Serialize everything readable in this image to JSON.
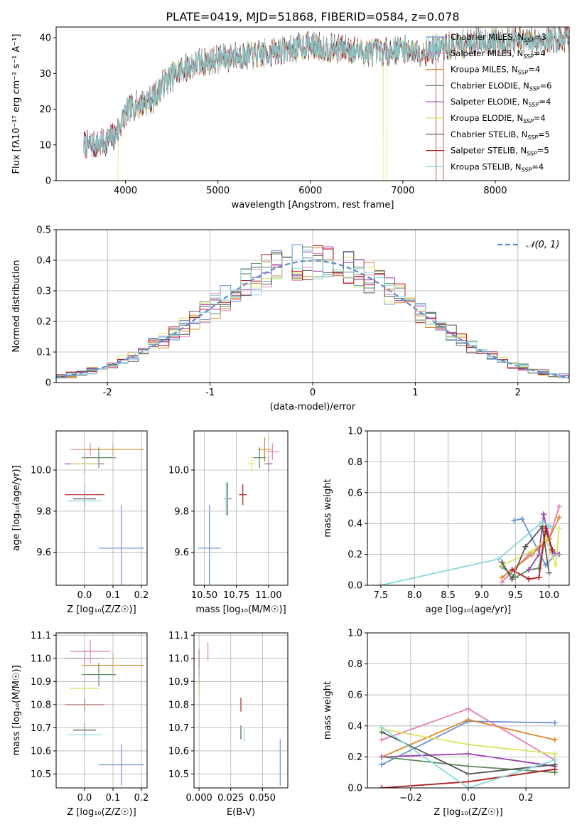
{
  "figure_title": "PLATE=0419, MJD=51868, FIBERID=0584, z=0.078",
  "colors": {
    "Chabrier MILES": "#6a8fd8",
    "Salpeter MILES": "#e67fb8",
    "Kroupa MILES": "#e08628",
    "Chabrier ELODIE": "#5e8b5e",
    "Salpeter ELODIE": "#9a3db0",
    "Kroupa ELODIE": "#dbe55c",
    "Chabrier STELIB": "#555555",
    "Salpeter STELIB": "#b01c1c",
    "Kroupa STELIB": "#88d8dc"
  },
  "chart_data": [
    {
      "id": "spectrum",
      "type": "line",
      "title": "PLATE=0419, MJD=51868, FIBERID=0584, z=0.078",
      "xlabel": "wavelength [Angstrom, rest frame]",
      "ylabel": "Flux [fλ10⁻¹⁷ erg cm⁻² s⁻¹ A⁻¹]",
      "xlim": [
        3250,
        8800
      ],
      "ylim": [
        0,
        43
      ],
      "xticks": [
        4000,
        5000,
        6000,
        7000,
        8000
      ],
      "yticks": [
        0,
        10,
        20,
        30,
        40
      ],
      "grid": false,
      "legend_position": "top-right",
      "continuum_x": [
        3550,
        3700,
        3800,
        3900,
        4000,
        4100,
        4200,
        4300,
        4400,
        4500,
        4600,
        4800,
        5000,
        5200,
        5400,
        5600,
        5800,
        6000,
        6200,
        6400,
        6600,
        6800,
        7000,
        7200,
        7400,
        7600,
        7800,
        8000,
        8200,
        8400,
        8800
      ],
      "continuum_y": [
        10,
        10,
        11,
        13,
        19,
        21,
        22,
        23,
        27,
        29,
        31,
        33,
        34,
        35,
        35,
        36,
        37,
        38,
        37,
        37,
        36,
        36,
        37,
        36,
        37,
        38,
        39,
        39,
        39,
        39,
        40
      ],
      "legend": [
        {
          "name": "Chabrier MILES",
          "nssp": "3"
        },
        {
          "name": "Salpeter MILES",
          "nssp": "4"
        },
        {
          "name": "Kroupa MILES",
          "nssp": "4"
        },
        {
          "name": "Chabrier ELODIE",
          "nssp": "6"
        },
        {
          "name": "Salpeter ELODIE",
          "nssp": "4"
        },
        {
          "name": "Kroupa ELODIE",
          "nssp": "4"
        },
        {
          "name": "Chabrier STELIB",
          "nssp": "5"
        },
        {
          "name": "Salpeter STELIB",
          "nssp": "5"
        },
        {
          "name": "Kroupa STELIB",
          "nssp": "4"
        }
      ]
    },
    {
      "id": "residuals",
      "type": "line",
      "xlabel": "(data-model)/error",
      "ylabel": "Normed distribution",
      "xlim": [
        -2.5,
        2.5
      ],
      "ylim": [
        0,
        0.5
      ],
      "xticks": [
        -2,
        -1,
        0,
        1,
        2
      ],
      "yticks": [
        0.0,
        0.1,
        0.2,
        0.3,
        0.4,
        0.5
      ],
      "grid": true,
      "legend_position": "top-right",
      "legend": [
        {
          "name": "𝒩(0, 1)"
        }
      ],
      "bin_width": 0.1,
      "gaussian": {
        "mean": 0,
        "sigma": 1
      }
    },
    {
      "id": "age-vs-Z",
      "type": "scatter",
      "xlabel": "Z [log₁₀(Z/Z☉)]",
      "ylabel": "age  [log₁₀(age/yr)]",
      "xlim": [
        -0.1,
        0.22
      ],
      "ylim": [
        9.44,
        10.19
      ],
      "xticks": [
        0.0,
        0.1,
        0.2
      ],
      "xticklabels": [
        "0.0",
        "0.1",
        "0.2"
      ],
      "yticks": [
        9.6,
        9.8,
        10.0
      ],
      "yticklabels": [
        "9.6",
        "9.8",
        "10.0"
      ],
      "grid": true,
      "points": [
        {
          "series": "Chabrier MILES",
          "x": 0.13,
          "y": 9.62,
          "xerr": 0.08,
          "yerr": 0.21
        },
        {
          "series": "Salpeter MILES",
          "x": 0.02,
          "y": 10.1,
          "xerr": 0.07,
          "yerr": 0.03
        },
        {
          "series": "Kroupa MILES",
          "x": 0.1,
          "y": 10.1,
          "xerr": 0.11,
          "yerr": 0.03
        },
        {
          "series": "Chabrier ELODIE",
          "x": 0.05,
          "y": 10.06,
          "xerr": 0.06,
          "yerr": 0.05
        },
        {
          "series": "Salpeter ELODIE",
          "x": 0.0,
          "y": 10.03,
          "xerr": 0.07,
          "yerr": 0.05
        },
        {
          "series": "Kroupa ELODIE",
          "x": 0.0,
          "y": 10.03,
          "xerr": 0.05,
          "yerr": 0.04
        },
        {
          "series": "Chabrier STELIB",
          "x": 0.0,
          "y": 9.86,
          "xerr": 0.04,
          "yerr": 0.04
        },
        {
          "series": "Salpeter STELIB",
          "x": 0.0,
          "y": 9.88,
          "xerr": 0.07,
          "yerr": 0.05
        },
        {
          "series": "Kroupa STELIB",
          "x": 0.0,
          "y": 9.85,
          "xerr": 0.06,
          "yerr": 0.07
        }
      ]
    },
    {
      "id": "age-vs-mass",
      "type": "scatter",
      "xlabel": "mass [log₁₀(M/M☉)]",
      "ylabel": "",
      "xlim": [
        10.42,
        11.15
      ],
      "ylim": [
        9.44,
        10.19
      ],
      "xticks": [
        10.5,
        10.75,
        11.0
      ],
      "xticklabels": [
        "10.50",
        "10.75",
        "11.00"
      ],
      "yticks": [
        9.6,
        9.8,
        10.0
      ],
      "yticklabels": [
        "9.6",
        "9.8",
        "10.0"
      ],
      "grid": true,
      "points": [
        {
          "series": "Chabrier MILES",
          "x": 10.54,
          "y": 9.62,
          "xerr": 0.09,
          "yerr": 0.21
        },
        {
          "series": "Salpeter MILES",
          "x": 11.03,
          "y": 10.09,
          "xerr": 0.05,
          "yerr": 0.04
        },
        {
          "series": "Kroupa MILES",
          "x": 10.97,
          "y": 10.1,
          "xerr": 0.05,
          "yerr": 0.06
        },
        {
          "series": "Chabrier ELODIE",
          "x": 10.93,
          "y": 10.06,
          "xerr": 0.05,
          "yerr": 0.05
        },
        {
          "series": "Salpeter ELODIE",
          "x": 11.0,
          "y": 10.03,
          "xerr": 0.03,
          "yerr": 0.04
        },
        {
          "series": "Kroupa ELODIE",
          "x": 10.87,
          "y": 10.03,
          "xerr": 0.03,
          "yerr": 0.04
        },
        {
          "series": "Chabrier STELIB",
          "x": 10.68,
          "y": 9.86,
          "xerr": 0.03,
          "yerr": 0.08
        },
        {
          "series": "Salpeter STELIB",
          "x": 10.8,
          "y": 9.88,
          "xerr": 0.03,
          "yerr": 0.05
        },
        {
          "series": "Kroupa STELIB",
          "x": 10.67,
          "y": 9.86,
          "xerr": 0.02,
          "yerr": 0.08
        }
      ]
    },
    {
      "id": "weight-vs-age",
      "type": "line",
      "xlabel": "age  [log₁₀(age/yr)]",
      "ylabel": "mass weight",
      "xlim": [
        7.3,
        10.3
      ],
      "ylim": [
        0,
        1
      ],
      "xticks": [
        7.5,
        8.0,
        8.5,
        9.0,
        9.5,
        10.0
      ],
      "xticklabels": [
        "7.5",
        "8.0",
        "8.5",
        "9.0",
        "9.5",
        "10.0"
      ],
      "yticks": [
        0,
        0.2,
        0.4,
        0.6,
        0.8,
        1.0
      ],
      "yticklabels": [
        "0.0",
        "0.2",
        "0.4",
        "0.6",
        "0.8",
        "1.0"
      ],
      "grid": true,
      "series": [
        {
          "name": "Chabrier MILES",
          "x": [
            9.48,
            9.6,
            9.95,
            10.12
          ],
          "y": [
            0.42,
            0.43,
            0.13,
            0.21
          ]
        },
        {
          "name": "Salpeter MILES",
          "x": [
            9.3,
            9.7,
            10.0,
            10.15
          ],
          "y": [
            0.02,
            0.2,
            0.3,
            0.51
          ]
        },
        {
          "name": "Kroupa MILES",
          "x": [
            9.3,
            9.75,
            10.0,
            10.15
          ],
          "y": [
            0.05,
            0.2,
            0.3,
            0.44
          ]
        },
        {
          "name": "Chabrier ELODIE",
          "x": [
            9.3,
            9.5,
            9.7,
            9.85,
            9.95,
            10.05
          ],
          "y": [
            0.12,
            0.05,
            0.1,
            0.11,
            0.35,
            0.22
          ]
        },
        {
          "name": "Salpeter ELODIE",
          "x": [
            9.7,
            9.85,
            9.92,
            10.05,
            10.15
          ],
          "y": [
            0.1,
            0.2,
            0.46,
            0.21,
            0.2
          ]
        },
        {
          "name": "Kroupa ELODIE",
          "x": [
            9.3,
            9.75,
            9.95,
            10.1,
            10.15
          ],
          "y": [
            0.13,
            0.22,
            0.3,
            0.13,
            0.37
          ]
        },
        {
          "name": "Chabrier STELIB",
          "x": [
            9.3,
            9.45,
            9.65,
            9.9,
            10.0
          ],
          "y": [
            0.15,
            0.04,
            0.25,
            0.38,
            0.08
          ]
        },
        {
          "name": "Salpeter STELIB",
          "x": [
            9.45,
            9.7,
            9.85,
            9.95,
            10.05
          ],
          "y": [
            0.1,
            0.04,
            0.05,
            0.37,
            0.23
          ]
        },
        {
          "name": "Kroupa STELIB",
          "x": [
            7.5,
            9.25,
            9.9,
            10.02
          ],
          "y": [
            0.0,
            0.17,
            0.41,
            0.38
          ]
        }
      ]
    },
    {
      "id": "mass-vs-Z",
      "type": "scatter",
      "xlabel": "Z [log₁₀(Z/Z☉)]",
      "ylabel": "mass [log₁₀(M/M☉)]",
      "xlim": [
        -0.1,
        0.22
      ],
      "ylim": [
        10.44,
        11.11
      ],
      "xticks": [
        0.0,
        0.1,
        0.2
      ],
      "xticklabels": [
        "0.0",
        "0.1",
        "0.2"
      ],
      "yticks": [
        10.5,
        10.6,
        10.7,
        10.8,
        10.9,
        11.0,
        11.1
      ],
      "yticklabels": [
        "10.5",
        "10.6",
        "10.7",
        "10.8",
        "10.9",
        "11.0",
        "11.1"
      ],
      "grid": true,
      "points": [
        {
          "series": "Chabrier MILES",
          "x": 0.13,
          "y": 10.54,
          "xerr": 0.08,
          "yerr": 0.09
        },
        {
          "series": "Salpeter MILES",
          "x": 0.02,
          "y": 11.03,
          "xerr": 0.07,
          "yerr": 0.05
        },
        {
          "series": "Kroupa MILES",
          "x": 0.1,
          "y": 10.97,
          "xerr": 0.11,
          "yerr": 0.05
        },
        {
          "series": "Chabrier ELODIE",
          "x": 0.05,
          "y": 10.93,
          "xerr": 0.06,
          "yerr": 0.05
        },
        {
          "series": "Salpeter ELODIE",
          "x": 0.0,
          "y": 11.0,
          "xerr": 0.07,
          "yerr": 0.03
        },
        {
          "series": "Kroupa ELODIE",
          "x": 0.0,
          "y": 10.87,
          "xerr": 0.05,
          "yerr": 0.03
        },
        {
          "series": "Chabrier STELIB",
          "x": 0.0,
          "y": 10.69,
          "xerr": 0.04,
          "yerr": 0.03
        },
        {
          "series": "Salpeter STELIB",
          "x": 0.0,
          "y": 10.8,
          "xerr": 0.07,
          "yerr": 0.03
        },
        {
          "series": "Kroupa STELIB",
          "x": 0.0,
          "y": 10.67,
          "xerr": 0.06,
          "yerr": 0.02
        }
      ]
    },
    {
      "id": "mass-vs-ebv",
      "type": "scatter",
      "xlabel": "E(B-V)",
      "ylabel": "",
      "xlim": [
        -0.004,
        0.07
      ],
      "ylim": [
        10.44,
        11.11
      ],
      "xticks": [
        0.0,
        0.025,
        0.05
      ],
      "xticklabels": [
        "0.000",
        "0.025",
        "0.050"
      ],
      "yticks": [
        10.5,
        10.6,
        10.7,
        10.8,
        10.9,
        11.0,
        11.1
      ],
      "yticklabels": [
        "10.5",
        "10.6",
        "10.7",
        "10.8",
        "10.9",
        "11.0",
        "11.1"
      ],
      "grid": true,
      "points": [
        {
          "series": "Chabrier MILES",
          "x": 0.064,
          "y": 10.55,
          "xerr": 0,
          "yerr": 0.1
        },
        {
          "series": "Salpeter MILES",
          "x": 0.007,
          "y": 11.03,
          "xerr": 0,
          "yerr": 0.04
        },
        {
          "series": "Kroupa MILES",
          "x": 0.0,
          "y": 11.0,
          "xerr": 0,
          "yerr": 0.03
        },
        {
          "series": "Chabrier ELODIE",
          "x": 0.0,
          "y": 10.93,
          "xerr": 0,
          "yerr": 0.04
        },
        {
          "series": "Salpeter ELODIE",
          "x": 0.0,
          "y": 11.0,
          "xerr": 0,
          "yerr": 0.04
        },
        {
          "series": "Kroupa ELODIE",
          "x": 0.0,
          "y": 10.88,
          "xerr": 0,
          "yerr": 0.04
        },
        {
          "series": "Chabrier STELIB",
          "x": 0.033,
          "y": 10.68,
          "xerr": 0,
          "yerr": 0.03
        },
        {
          "series": "Salpeter STELIB",
          "x": 0.033,
          "y": 10.8,
          "xerr": 0,
          "yerr": 0.03
        },
        {
          "series": "Kroupa STELIB",
          "x": 0.036,
          "y": 10.67,
          "xerr": 0,
          "yerr": 0.03
        }
      ]
    },
    {
      "id": "weight-vs-Z",
      "type": "line",
      "xlabel": "Z [log₁₀(Z/Z☉)]",
      "ylabel": "mass weight",
      "xlim": [
        -0.35,
        0.35
      ],
      "ylim": [
        0,
        1
      ],
      "xticks": [
        -0.2,
        0.0,
        0.2
      ],
      "xticklabels": [
        "−0.2",
        "0.0",
        "0.2"
      ],
      "yticks": [
        0,
        0.2,
        0.4,
        0.6,
        0.8,
        1.0
      ],
      "yticklabels": [
        "0.0",
        "0.2",
        "0.4",
        "0.6",
        "0.8",
        "1.0"
      ],
      "grid": true,
      "series": [
        {
          "name": "Chabrier MILES",
          "x": [
            -0.3,
            0.0,
            0.3
          ],
          "y": [
            0.15,
            0.43,
            0.42
          ]
        },
        {
          "name": "Salpeter MILES",
          "x": [
            -0.3,
            0.0,
            0.3
          ],
          "y": [
            0.31,
            0.51,
            0.18
          ]
        },
        {
          "name": "Kroupa MILES",
          "x": [
            -0.3,
            0.0,
            0.3
          ],
          "y": [
            0.2,
            0.44,
            0.31
          ]
        },
        {
          "name": "Chabrier ELODIE",
          "x": [
            -0.3,
            0.0,
            0.3
          ],
          "y": [
            0.2,
            0.14,
            0.1
          ]
        },
        {
          "name": "Salpeter ELODIE",
          "x": [
            -0.3,
            0.0,
            0.3
          ],
          "y": [
            0.2,
            0.22,
            0.14
          ]
        },
        {
          "name": "Kroupa ELODIE",
          "x": [
            -0.3,
            0.0,
            0.3
          ],
          "y": [
            0.38,
            0.28,
            0.22
          ]
        },
        {
          "name": "Chabrier STELIB",
          "x": [
            -0.3,
            0.0,
            0.3
          ],
          "y": [
            0.36,
            0.09,
            0.15
          ]
        },
        {
          "name": "Salpeter STELIB",
          "x": [
            -0.3,
            0.0,
            0.3
          ],
          "y": [
            0.0,
            0.04,
            0.12
          ]
        },
        {
          "name": "Kroupa STELIB",
          "x": [
            -0.3,
            0.0,
            0.3
          ],
          "y": [
            0.39,
            0.0,
            0.18
          ]
        }
      ]
    }
  ]
}
